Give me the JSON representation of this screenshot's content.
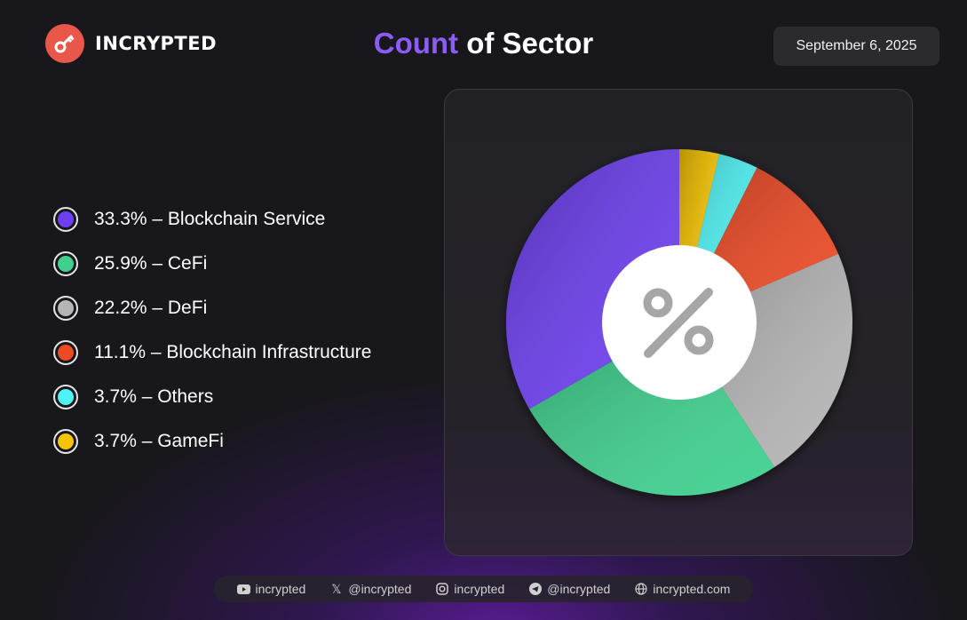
{
  "brand": {
    "name": "INCRYPTED",
    "logo_icon": "key-icon",
    "logo_color": "#e9574a"
  },
  "header": {
    "title_accent": "Count",
    "title_rest": " of Sector",
    "date": "September 6, 2025"
  },
  "chart_data": {
    "type": "pie",
    "title": "Count of Sector",
    "donut": true,
    "center_icon": "percent-icon",
    "start": "top, clockwise",
    "slices": [
      {
        "label": "GameFi",
        "value": 3.7,
        "legend": "3.7% – GameFi",
        "color": "#f5c400"
      },
      {
        "label": "Others",
        "value": 3.7,
        "legend": "3.7% – Others",
        "color": "#4ff3f5"
      },
      {
        "label": "Blockchain Infrastructure",
        "value": 11.1,
        "legend": "11.1% – Blockchain Infrastructure",
        "color": "#ec4a24"
      },
      {
        "label": "DeFi",
        "value": 22.2,
        "legend": "22.2% – DeFi",
        "color": "#b5b5b5"
      },
      {
        "label": "CeFi",
        "value": 25.9,
        "legend": "25.9% – CeFi",
        "color": "#3fd08f"
      },
      {
        "label": "Blockchain Service",
        "value": 33.3,
        "legend": "33.3% – Blockchain Service",
        "color": "#6d3ff0"
      }
    ],
    "legend_order": [
      "Blockchain Service",
      "CeFi",
      "DeFi",
      "Blockchain Infrastructure",
      "Others",
      "GameFi"
    ],
    "legend_placement": "left"
  },
  "footer": {
    "items": [
      {
        "icon": "youtube-icon",
        "text": "incrypted"
      },
      {
        "icon": "x-icon",
        "text": "@incrypted"
      },
      {
        "icon": "instagram-icon",
        "text": "incrypted"
      },
      {
        "icon": "telegram-icon",
        "text": "@incrypted"
      },
      {
        "icon": "globe-icon",
        "text": "incrypted.com"
      }
    ]
  }
}
